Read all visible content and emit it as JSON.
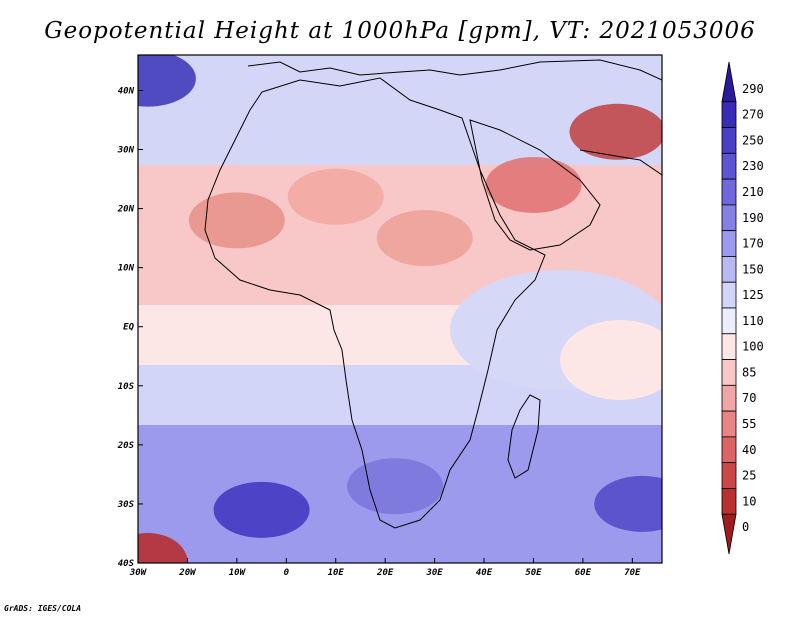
{
  "title": "Geopotential Height at 1000hPa [gpm], VT: 2021053006",
  "credit": "GrADS: IGES/COLA",
  "map": {
    "lon_range": [
      -30,
      76
    ],
    "lat_range": [
      -40,
      46
    ],
    "lon_ticks": [
      {
        "value": -30,
        "label": "30W"
      },
      {
        "value": -20,
        "label": "20W"
      },
      {
        "value": -10,
        "label": "10W"
      },
      {
        "value": 0,
        "label": "0"
      },
      {
        "value": 10,
        "label": "10E"
      },
      {
        "value": 20,
        "label": "20E"
      },
      {
        "value": 30,
        "label": "30E"
      },
      {
        "value": 40,
        "label": "40E"
      },
      {
        "value": 50,
        "label": "50E"
      },
      {
        "value": 60,
        "label": "60E"
      },
      {
        "value": 70,
        "label": "70E"
      }
    ],
    "lat_ticks": [
      {
        "value": 40,
        "label": "40N"
      },
      {
        "value": 30,
        "label": "30N"
      },
      {
        "value": 20,
        "label": "20N"
      },
      {
        "value": 10,
        "label": "10N"
      },
      {
        "value": 0,
        "label": "EQ"
      },
      {
        "value": -10,
        "label": "10S"
      },
      {
        "value": -20,
        "label": "20S"
      },
      {
        "value": -30,
        "label": "30S"
      },
      {
        "value": -40,
        "label": "40S"
      }
    ]
  },
  "colorbar": {
    "levels": [
      "290",
      "270",
      "250",
      "230",
      "210",
      "190",
      "170",
      "150",
      "125",
      "110",
      "100",
      "85",
      "70",
      "55",
      "40",
      "25",
      "10",
      "0"
    ],
    "colors": [
      "#2a1a9e",
      "#3a2cb8",
      "#4a40c8",
      "#5c54d4",
      "#6e68dc",
      "#8480e4",
      "#9c9aec",
      "#b8b8f2",
      "#d2d4f8",
      "#eceefc",
      "#fce6e6",
      "#f8c8c8",
      "#f0a6a6",
      "#e88484",
      "#dc6464",
      "#cc4848",
      "#b83030",
      "#a01c1c"
    ]
  },
  "field": {
    "zones": [
      {
        "name": "low-arabia",
        "lon": 50,
        "lat": 24,
        "color": "#e07070"
      },
      {
        "name": "low-iran",
        "lon": 67,
        "lat": 33,
        "color": "#c04040"
      },
      {
        "name": "low-sahara",
        "lon": 10,
        "lat": 22,
        "color": "#f2a8a0"
      },
      {
        "name": "low-sudan",
        "lon": 28,
        "lat": 15,
        "color": "#eca096"
      },
      {
        "name": "low-west-africa",
        "lon": -10,
        "lat": 18,
        "color": "#e89088"
      },
      {
        "name": "high-atlantic-n",
        "lon": -28,
        "lat": 42,
        "color": "#3a32b8"
      },
      {
        "name": "high-south-atlantic",
        "lon": -5,
        "lat": -31,
        "color": "#3e34c0"
      },
      {
        "name": "high-indian-sw",
        "lon": 72,
        "lat": -30,
        "color": "#5048c8"
      },
      {
        "name": "high-south-africa",
        "lon": 22,
        "lat": -27,
        "color": "#7a74dc"
      },
      {
        "name": "low-sw-corner",
        "lon": -28,
        "lat": -40,
        "color": "#b82828"
      }
    ]
  }
}
